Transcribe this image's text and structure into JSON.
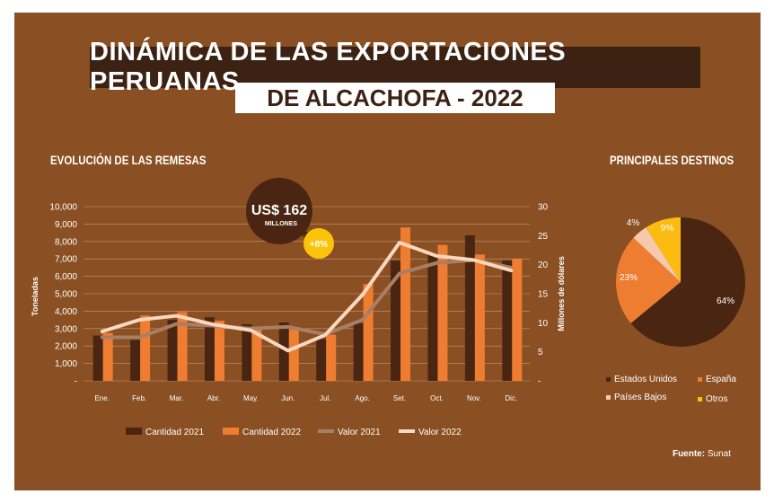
{
  "header": {
    "title_line1": "DINÁMICA DE LAS EXPORTACIONES PERUANAS",
    "title_line2": "DE ALCACHOFA - 2022"
  },
  "sections": {
    "left_title": "EVOLUCIÓN DE LAS REMESAS",
    "right_title": "PRINCIPALES DESTINOS"
  },
  "callout": {
    "amount": "US$ 162",
    "unit": "MILLONES",
    "change": "+8%"
  },
  "source": {
    "label": "Fuente:",
    "value": "Sunat"
  },
  "colors": {
    "background": "#8a4f22",
    "cantidad_2021": "#4a2612",
    "cantidad_2022": "#ee7d32",
    "valor_2021": "#a87f66",
    "valor_2022": "#fbd7be",
    "estados_unidos": "#4a2612",
    "espana": "#ee7d32",
    "paises_bajos": "#f6c9ad",
    "otros": "#fbbb10",
    "callout_dark": "#4a2612",
    "callout_yellow": "#fcc30c"
  },
  "chart_data": [
    {
      "type": "bar",
      "title": "EVOLUCIÓN DE LAS REMESAS",
      "categories": [
        "Ene.",
        "Feb.",
        "Mar.",
        "Abr.",
        "May.",
        "Jun.",
        "Jul.",
        "Ago.",
        "Set.",
        "Oct.",
        "Nov.",
        "Dic."
      ],
      "ylabel": "Toneladas",
      "y2label": "Millones de dólares",
      "ylim": [
        0,
        10000
      ],
      "y2lim": [
        0,
        30
      ],
      "yticks": [
        "-",
        "1,000",
        "2,000",
        "3,000",
        "4,000",
        "5,000",
        "6,000",
        "7,000",
        "8,000",
        "9,000",
        "10,000"
      ],
      "y2ticks": [
        "-",
        "5",
        "10",
        "15",
        "20",
        "25",
        "30"
      ],
      "series": [
        {
          "name": "Cantidad 2021",
          "kind": "bar",
          "axis": "left",
          "values": [
            2600,
            2350,
            3500,
            3650,
            3250,
            3350,
            2400,
            3300,
            6900,
            7300,
            8350,
            6900
          ]
        },
        {
          "name": "Cantidad 2022",
          "kind": "bar",
          "axis": "left",
          "values": [
            2750,
            3750,
            3950,
            3450,
            3050,
            2950,
            2650,
            5550,
            8800,
            7800,
            7250,
            7000
          ]
        },
        {
          "name": "Valor 2021",
          "kind": "line",
          "axis": "right",
          "values": [
            7.5,
            7.5,
            9.8,
            9.5,
            9.0,
            9.3,
            8.0,
            10.5,
            18.5,
            20.3,
            20.8,
            19.5
          ]
        },
        {
          "name": "Valor 2022",
          "kind": "line",
          "axis": "right",
          "values": [
            8.5,
            10.5,
            11.2,
            9.7,
            8.7,
            5.2,
            7.9,
            14.8,
            23.8,
            21.5,
            20.8,
            19.0
          ]
        }
      ],
      "legend": [
        "Cantidad 2021",
        "Cantidad 2022",
        "Valor 2021",
        "Valor 2022"
      ]
    },
    {
      "type": "pie",
      "title": "PRINCIPALES DESTINOS",
      "labels": [
        "Estados Unidos",
        "España",
        "Países Bajos",
        "Otros"
      ],
      "values": [
        64,
        23,
        4,
        9
      ],
      "value_labels": [
        "64%",
        "23%",
        "4%",
        "9%"
      ],
      "legend": [
        "Estados Unidos",
        "España",
        "Países Bajos",
        "Otros"
      ]
    }
  ]
}
